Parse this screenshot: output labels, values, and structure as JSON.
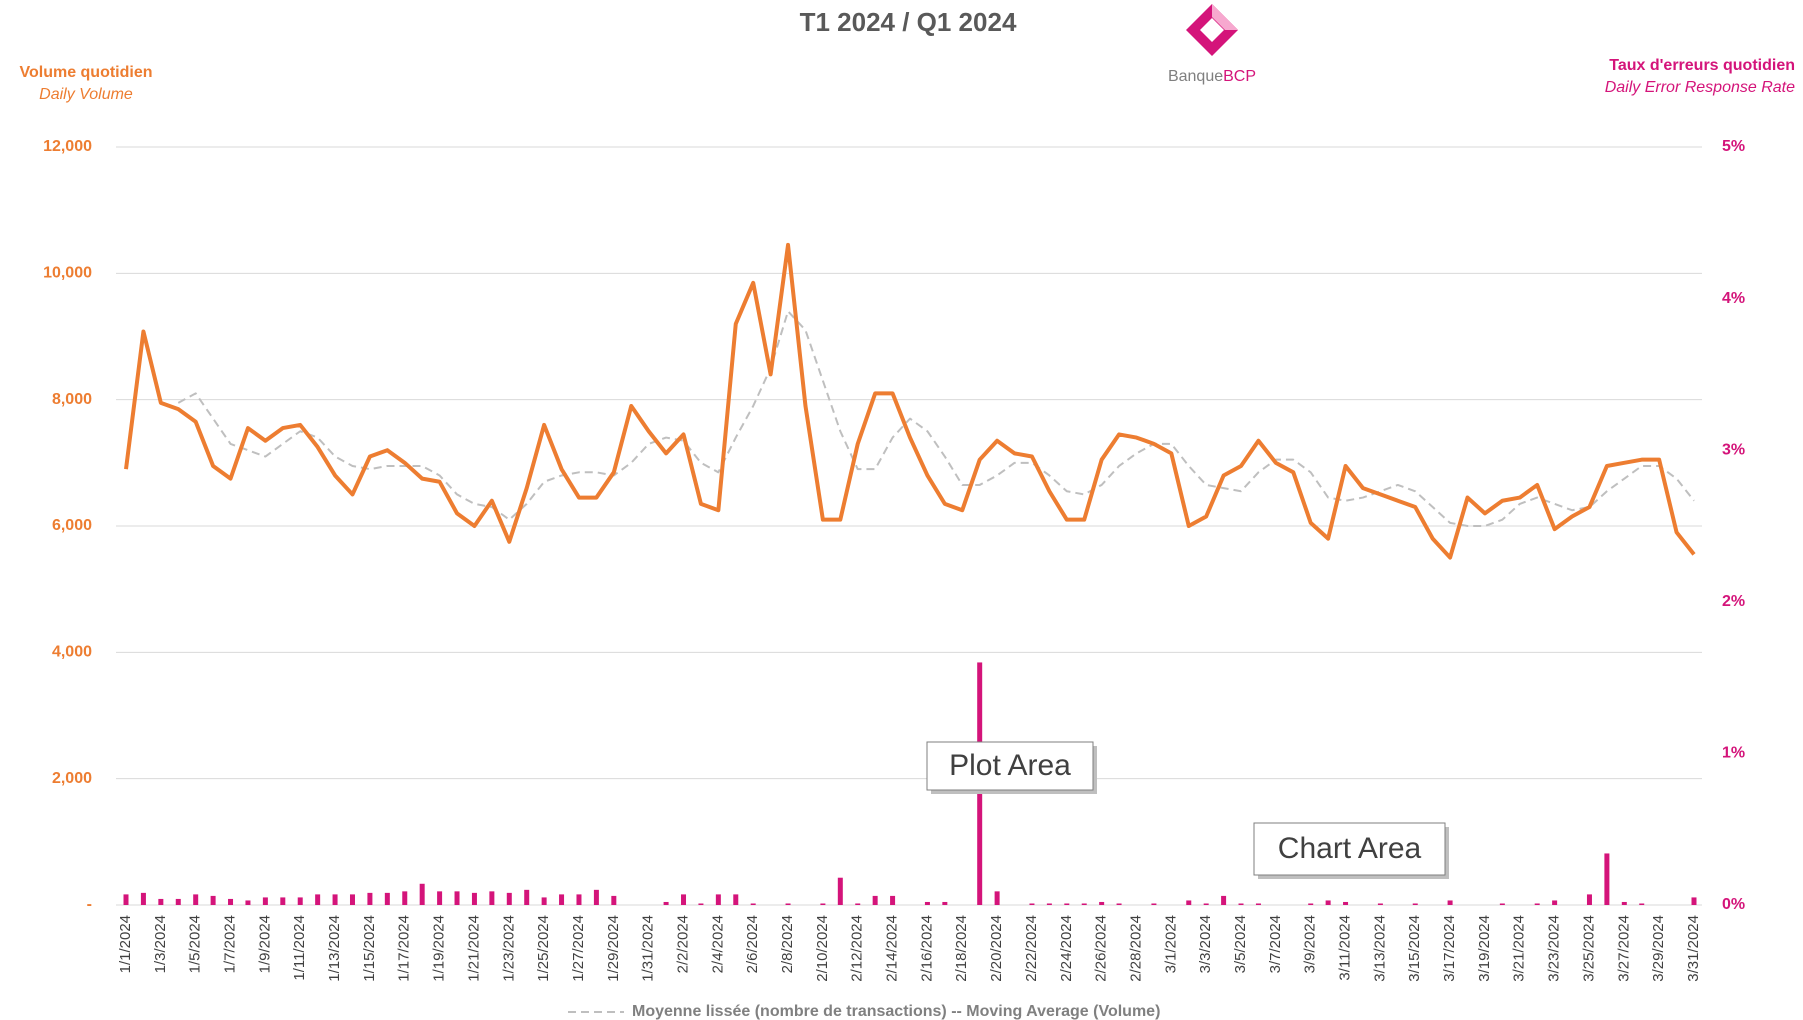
{
  "chart_data": {
    "type": "line",
    "title": "T1 2024 / Q1 2024",
    "logo": {
      "name": "Banque",
      "accent": "BCP"
    },
    "y_label": "Volume quotidien",
    "y_sublabel": "Daily Volume",
    "y2_label": "Taux d'erreurs quotidien",
    "y2_sublabel": "Daily Error Response Rate",
    "annotations": [
      "Plot Area",
      "Chart Area"
    ],
    "categories": [
      "1/1/2024",
      null,
      "1/3/2024",
      null,
      "1/5/2024",
      null,
      "1/7/2024",
      null,
      "1/9/2024",
      null,
      "1/11/2024",
      null,
      "1/13/2024",
      null,
      "1/15/2024",
      null,
      "1/17/2024",
      null,
      "1/19/2024",
      null,
      "1/21/2024",
      null,
      "1/23/2024",
      null,
      "1/25/2024",
      null,
      "1/27/2024",
      null,
      "1/29/2024",
      null,
      "1/31/2024",
      null,
      "2/2/2024",
      null,
      "2/4/2024",
      null,
      "2/6/2024",
      null,
      "2/8/2024",
      null,
      "2/10/2024",
      null,
      "2/12/2024",
      null,
      "2/14/2024",
      null,
      "2/16/2024",
      null,
      "2/18/2024",
      null,
      "2/20/2024",
      null,
      "2/22/2024",
      null,
      "2/24/2024",
      null,
      "2/26/2024",
      null,
      "2/28/2024",
      null,
      "3/1/2024",
      null,
      "3/3/2024",
      null,
      "3/5/2024",
      null,
      "3/7/2024",
      null,
      "3/9/2024",
      null,
      "3/11/2024",
      null,
      "3/13/2024",
      null,
      "3/15/2024",
      null,
      "3/17/2024",
      null,
      "3/19/2024",
      null,
      "3/21/2024",
      null,
      "3/23/2024",
      null,
      "3/25/2024",
      null,
      "3/27/2024",
      null,
      "3/29/2024",
      null,
      "3/31/2024"
    ],
    "series": [
      {
        "type": "bar",
        "axis": "y2",
        "color": "#d4147a",
        "values": [
          0.07,
          0.08,
          0.04,
          0.04,
          0.07,
          0.06,
          0.04,
          0.03,
          0.05,
          0.05,
          0.05,
          0.07,
          0.07,
          0.07,
          0.08,
          0.08,
          0.09,
          0.14,
          0.09,
          0.09,
          0.08,
          0.09,
          0.08,
          0.1,
          0.05,
          0.07,
          0.07,
          0.1,
          0.06,
          0,
          0,
          0.02,
          0.07,
          0.01,
          0.07,
          0.07,
          0.01,
          0,
          0.01,
          0,
          0.01,
          0.18,
          0.01,
          0.06,
          0.06,
          0,
          0.02,
          0.02,
          0,
          1.6,
          0.09,
          0,
          0.01,
          0.01,
          0.01,
          0.01,
          0.02,
          0.01,
          0,
          0.01,
          0,
          0.03,
          0.01,
          0.06,
          0.01,
          0.01,
          0,
          0,
          0.01,
          0.03,
          0.02,
          0,
          0.01,
          0,
          0.01,
          0,
          0.03,
          0,
          0,
          0.01,
          0,
          0.01,
          0.03,
          0,
          0.07,
          0.34,
          0.02,
          0.01,
          0,
          0,
          0.05
        ]
      },
      {
        "name": "Moyenne lissée (nombre de transactions) -- Moving Average (Volume)",
        "type": "line",
        "dashed": true,
        "color": "#bfbfbf",
        "values": [
          null,
          null,
          null,
          7950,
          8100,
          7700,
          7300,
          7200,
          7100,
          7300,
          7500,
          7400,
          7100,
          6950,
          6900,
          6950,
          6950,
          6950,
          6800,
          6500,
          6350,
          6300,
          6100,
          6350,
          6700,
          6800,
          6850,
          6850,
          6800,
          7000,
          7300,
          7400,
          7350,
          7000,
          6850,
          7400,
          7900,
          8500,
          9400,
          9100,
          8300,
          7500,
          6900,
          6900,
          7400,
          7700,
          7500,
          7100,
          6650,
          6650,
          6800,
          7000,
          7000,
          6800,
          6550,
          6500,
          6650,
          6950,
          7150,
          7300,
          7300,
          6950,
          6650,
          6600,
          6550,
          6850,
          7050,
          7050,
          6850,
          6450,
          6400,
          6450,
          6550,
          6650,
          6550,
          6300,
          6050,
          6000,
          6000,
          6100,
          6350,
          6450,
          6350,
          6250,
          6300,
          6550,
          6750,
          6950,
          6950,
          6750,
          6400
        ]
      },
      {
        "type": "line",
        "color": "#ed7d31",
        "values": [
          6900,
          9080,
          7950,
          7850,
          7650,
          6950,
          6750,
          7550,
          7350,
          7550,
          7600,
          7250,
          6800,
          6500,
          7100,
          7200,
          7000,
          6750,
          6700,
          6200,
          6000,
          6400,
          5750,
          6600,
          7600,
          6900,
          6450,
          6450,
          6850,
          7900,
          7500,
          7150,
          7450,
          6350,
          6250,
          9200,
          9850,
          8400,
          10450,
          7900,
          6100,
          6100,
          7300,
          8100,
          8100,
          7400,
          6800,
          6350,
          6250,
          7050,
          7350,
          7150,
          7100,
          6550,
          6100,
          6100,
          7050,
          7450,
          7400,
          7300,
          7150,
          6000,
          6150,
          6800,
          6950,
          7350,
          7000,
          6850,
          6050,
          5800,
          6950,
          6600,
          6500,
          6400,
          6300,
          5800,
          5500,
          6450,
          6200,
          6400,
          6450,
          6650,
          5950,
          6150,
          6300,
          6950,
          7000,
          7050,
          7050,
          5900,
          5550
        ]
      }
    ],
    "ylim": [
      0,
      12000
    ],
    "yticks": [
      {
        "value": 0,
        "label": "-"
      },
      {
        "value": 2000,
        "label": "2,000"
      },
      {
        "value": 4000,
        "label": "4,000"
      },
      {
        "value": 6000,
        "label": "6,000"
      },
      {
        "value": 8000,
        "label": "8,000"
      },
      {
        "value": 10000,
        "label": "10,000"
      },
      {
        "value": 12000,
        "label": "12,000"
      }
    ],
    "y2lim": [
      0,
      5
    ],
    "y2ticks": [
      {
        "value": 0,
        "label": "0%"
      },
      {
        "value": 1,
        "label": "1%"
      },
      {
        "value": 2,
        "label": "2%"
      },
      {
        "value": 3,
        "label": "3%"
      },
      {
        "value": 4,
        "label": "4%"
      },
      {
        "value": 5,
        "label": "5%"
      }
    ],
    "grid": true,
    "legend": "bottom"
  }
}
